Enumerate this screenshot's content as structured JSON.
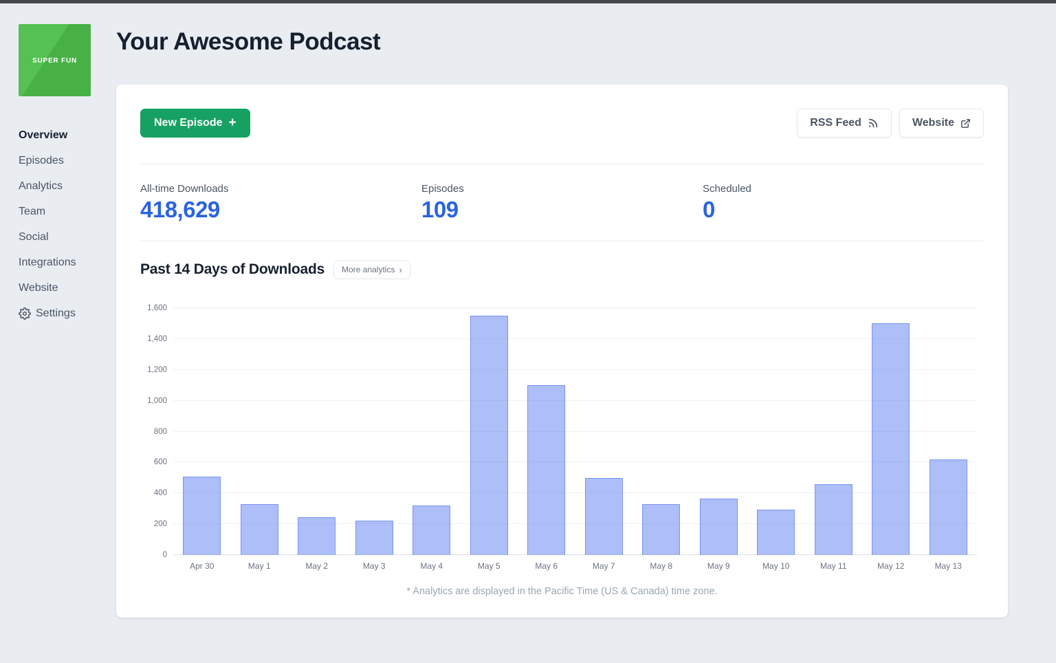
{
  "page": {
    "title": "Your Awesome Podcast"
  },
  "logo": {
    "text": "SUPER FUN"
  },
  "sidebar": {
    "items": [
      {
        "label": "Overview",
        "active": true,
        "icon": null
      },
      {
        "label": "Episodes",
        "active": false,
        "icon": null
      },
      {
        "label": "Analytics",
        "active": false,
        "icon": null
      },
      {
        "label": "Team",
        "active": false,
        "icon": null
      },
      {
        "label": "Social",
        "active": false,
        "icon": null
      },
      {
        "label": "Integrations",
        "active": false,
        "icon": null
      },
      {
        "label": "Website",
        "active": false,
        "icon": null
      },
      {
        "label": "Settings",
        "active": false,
        "icon": "gear"
      }
    ]
  },
  "toolbar": {
    "new_episode_label": "New Episode",
    "new_episode_plus": "+",
    "rss_label": "RSS Feed",
    "website_label": "Website"
  },
  "stats": [
    {
      "label": "All-time Downloads",
      "value": "418,629"
    },
    {
      "label": "Episodes",
      "value": "109"
    },
    {
      "label": "Scheduled",
      "value": "0"
    }
  ],
  "chart_section": {
    "title": "Past 14 Days of Downloads",
    "more_label": "More analytics",
    "more_chevron": "›",
    "footnote": "* Analytics are displayed in the Pacific Time (US & Canada) time zone."
  },
  "chart_data": {
    "type": "bar",
    "title": "Past 14 Days of Downloads",
    "categories": [
      "Apr 30",
      "May 1",
      "May 2",
      "May 3",
      "May 4",
      "May 5",
      "May 6",
      "May 7",
      "May 8",
      "May 9",
      "May 10",
      "May 11",
      "May 12",
      "May 13"
    ],
    "values": [
      510,
      330,
      245,
      225,
      320,
      1550,
      1100,
      500,
      330,
      365,
      295,
      460,
      1500,
      620
    ],
    "xlabel": "",
    "ylabel": "",
    "ylim": [
      0,
      1600
    ],
    "ytick_step": 200,
    "ytick_labels": [
      "0",
      "200",
      "400",
      "600",
      "800",
      "1,000",
      "1,200",
      "1,400",
      "1,600"
    ],
    "grid": true,
    "legend": false,
    "bar_fill": "rgba(122,150,243,0.62)",
    "bar_border": "#7b94f0"
  },
  "colors": {
    "accent_green": "#16a162",
    "logo_green": "#47b146",
    "stat_blue": "#2b63e0",
    "page_bg": "#e9edf2"
  }
}
